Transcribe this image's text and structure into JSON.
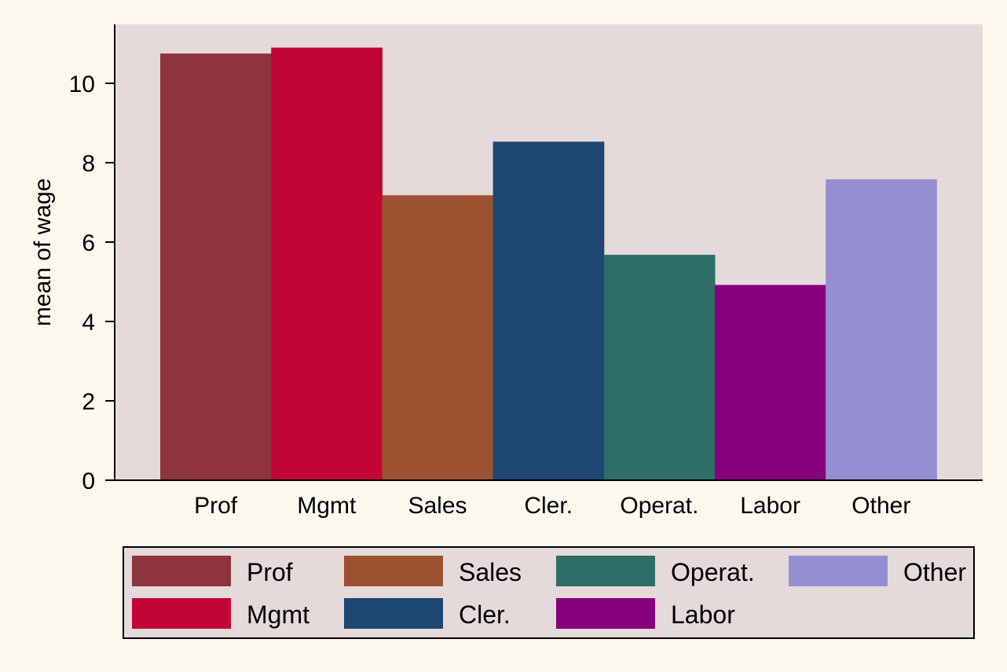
{
  "chart_data": {
    "type": "bar",
    "ylabel": "mean of wage",
    "xlabel": "",
    "ylim": [
      0,
      11.5
    ],
    "yticks": [
      0,
      2,
      4,
      6,
      8,
      10
    ],
    "grid": false,
    "legend_position": "bottom",
    "categories": [
      "Prof",
      "Mgmt",
      "Sales",
      "Cler.",
      "Operat.",
      "Labor",
      "Other"
    ],
    "values": [
      10.75,
      10.9,
      7.18,
      8.53,
      5.68,
      4.92,
      7.58
    ],
    "colors": [
      "#8e343c",
      "#c10534",
      "#9c5130",
      "#1d4670",
      "#2d6e66",
      "#870080",
      "#958fd1"
    ],
    "legend": {
      "entries": [
        "Prof",
        "Mgmt",
        "Sales",
        "Cler.",
        "Operat.",
        "Labor",
        "Other"
      ]
    }
  },
  "style": {
    "page_background": "#fdf8ee",
    "plot_background": "#e5dada",
    "legend_background": "#e5dada"
  }
}
